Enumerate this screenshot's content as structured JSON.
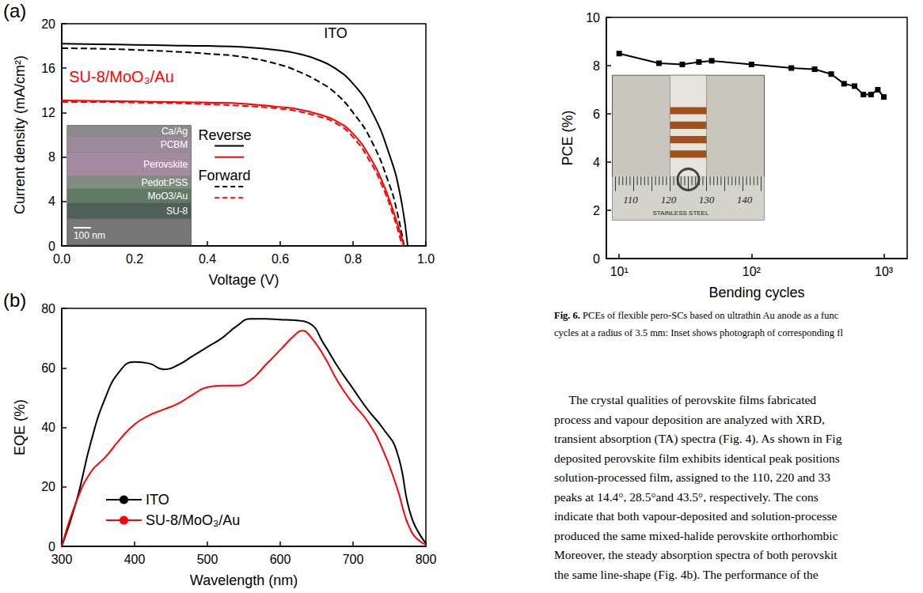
{
  "chart_data": [
    {
      "panel": "(a)",
      "type": "line",
      "xlabel": "Voltage (V)",
      "ylabel": "Current density (mA/cm²)",
      "xlim": [
        0,
        1
      ],
      "xticks": [
        {
          "value": 0,
          "label": "0.0"
        },
        {
          "value": 0.2,
          "label": "0.2"
        },
        {
          "value": 0.4,
          "label": "0.4"
        },
        {
          "value": 0.6,
          "label": "0.6"
        },
        {
          "value": 0.8,
          "label": "0.8"
        },
        {
          "value": 1,
          "label": "1.0"
        }
      ],
      "ylim": [
        0,
        20
      ],
      "yticks": [
        0,
        4,
        8,
        12,
        16,
        20
      ],
      "grid": false,
      "series": [
        {
          "name": "ITO",
          "scan": "Reverse",
          "color": "#000000",
          "line_style": "solid",
          "x": [
            0,
            0.1,
            0.2,
            0.3,
            0.4,
            0.5,
            0.6,
            0.65,
            0.7,
            0.75,
            0.8,
            0.85,
            0.9,
            0.93,
            0.95
          ],
          "values": [
            18.2,
            18.15,
            18.1,
            18.05,
            18.0,
            17.9,
            17.6,
            17.3,
            16.8,
            16.0,
            14.6,
            12.2,
            8.2,
            4.5,
            0
          ]
        },
        {
          "name": "ITO",
          "scan": "Forward",
          "color": "#000000",
          "line_style": "dashed",
          "x": [
            0,
            0.1,
            0.2,
            0.3,
            0.4,
            0.5,
            0.6,
            0.65,
            0.7,
            0.75,
            0.8,
            0.85,
            0.9,
            0.92,
            0.94
          ],
          "values": [
            17.8,
            17.75,
            17.65,
            17.5,
            17.3,
            17.0,
            16.3,
            15.7,
            14.9,
            13.8,
            12.0,
            9.5,
            5.5,
            3.2,
            0
          ]
        },
        {
          "name": "SU-8/MoO₃/Au",
          "scan": "Reverse",
          "color": "#ff0000",
          "line_style": "solid",
          "x": [
            0,
            0.1,
            0.2,
            0.3,
            0.4,
            0.5,
            0.6,
            0.65,
            0.7,
            0.75,
            0.8,
            0.85,
            0.88,
            0.91,
            0.94
          ],
          "values": [
            13.1,
            13.05,
            13.0,
            12.95,
            12.9,
            12.8,
            12.5,
            12.3,
            11.9,
            11.3,
            10.1,
            7.8,
            5.8,
            3.2,
            0
          ]
        },
        {
          "name": "SU-8/MoO₃/Au",
          "scan": "Forward",
          "color": "#ff0000",
          "line_style": "dashed",
          "x": [
            0,
            0.1,
            0.2,
            0.3,
            0.4,
            0.5,
            0.6,
            0.65,
            0.7,
            0.75,
            0.8,
            0.85,
            0.88,
            0.91,
            0.935
          ],
          "values": [
            12.95,
            12.95,
            12.9,
            12.85,
            12.75,
            12.6,
            12.35,
            12.1,
            11.7,
            11.1,
            9.8,
            7.4,
            5.4,
            2.8,
            0
          ]
        }
      ],
      "inset": {
        "layers": [
          "Ca/Ag",
          "PCBM",
          "Perovskite",
          "Pedot:PSS",
          "MoO3/Au",
          "SU-8"
        ],
        "scale_bar": "100 nm"
      }
    },
    {
      "panel": "(b)",
      "type": "line",
      "xlabel": "Wavelength (nm)",
      "ylabel": "EQE (%)",
      "xlim": [
        300,
        800
      ],
      "xticks": [
        300,
        400,
        500,
        600,
        700,
        800
      ],
      "ylim": [
        0,
        80
      ],
      "yticks": [
        0,
        20,
        40,
        60,
        80
      ],
      "grid": false,
      "legend": "lower left",
      "series": [
        {
          "name": "ITO",
          "color": "#000000",
          "line_style": "solid",
          "x": [
            300,
            320,
            340,
            360,
            380,
            400,
            420,
            440,
            460,
            480,
            500,
            520,
            540,
            560,
            580,
            600,
            620,
            640,
            660,
            680,
            700,
            720,
            740,
            760,
            780,
            800
          ],
          "values": [
            0,
            15,
            35,
            50,
            59,
            62,
            61.5,
            59.5,
            61,
            64,
            67,
            70,
            74,
            76.5,
            76.5,
            76.2,
            76,
            75,
            68,
            60,
            53,
            46,
            40,
            32,
            10,
            1
          ]
        },
        {
          "name": "SU-8/MoO₃/Au",
          "color": "#ff0000",
          "line_style": "solid",
          "x": [
            300,
            320,
            340,
            360,
            380,
            400,
            420,
            440,
            460,
            480,
            500,
            520,
            540,
            560,
            580,
            600,
            620,
            630,
            640,
            660,
            680,
            700,
            720,
            740,
            760,
            780,
            800
          ],
          "values": [
            0,
            15,
            25,
            30,
            36,
            41,
            44,
            46,
            48,
            51,
            53.5,
            54,
            54,
            56,
            61,
            66,
            71,
            72.5,
            71,
            64,
            55,
            48,
            42,
            33,
            20,
            5,
            0.5
          ]
        }
      ]
    },
    {
      "type": "line",
      "xlabel": "Bending cycles",
      "ylabel": "PCE (%)",
      "log": "x",
      "marker": "square",
      "xlim": [
        8,
        1500
      ],
      "xticks": [
        {
          "value": 10,
          "label": "10¹"
        },
        {
          "value": 100,
          "label": "10²"
        },
        {
          "value": 1000,
          "label": "10³"
        }
      ],
      "ylim": [
        0,
        10
      ],
      "yticks": [
        0,
        2,
        4,
        6,
        8,
        10
      ],
      "grid": false,
      "series": [
        {
          "color": "#000000",
          "line_style": "solid",
          "x": [
            10,
            20,
            30,
            40,
            50,
            100,
            200,
            300,
            400,
            500,
            600,
            700,
            800,
            900,
            1000
          ],
          "values": [
            8.5,
            8.1,
            8.05,
            8.15,
            8.2,
            8.05,
            7.9,
            7.85,
            7.65,
            7.25,
            7.15,
            6.8,
            6.8,
            7.0,
            6.7
          ]
        }
      ],
      "inset": {
        "ruler_labels": [
          "110",
          "120",
          "130",
          "140"
        ],
        "ruler_text": "STAINLESS STEEL"
      }
    }
  ],
  "caption": {
    "label": "Fig. 6.",
    "lines": [
      "PCEs of flexible pero-SCs based on ultrathin Au anode as a func",
      "cycles at a radius of 3.5 mm: Inset shows photograph of corresponding fl"
    ]
  },
  "text": {
    "lines": [
      "The crystal qualities of perovskite films fabricated",
      "process and vapour deposition are analyzed with XRD,",
      "transient absorption (TA) spectra (Fig. 4). As shown in Fig",
      "deposited perovskite film exhibits identical peak positions",
      "solution-processed film, assigned to the 110, 220 and 33",
      "peaks at 14.4°, 28.5°and 43.5°, respectively. The cons",
      "indicate that both vapour-deposited and solution-processe",
      "produced the same mixed-halide perovskite orthorhombic",
      "Moreover, the steady absorption spectra of both perovskit",
      "the same line-shape (Fig. 4b). The performance of the"
    ]
  }
}
